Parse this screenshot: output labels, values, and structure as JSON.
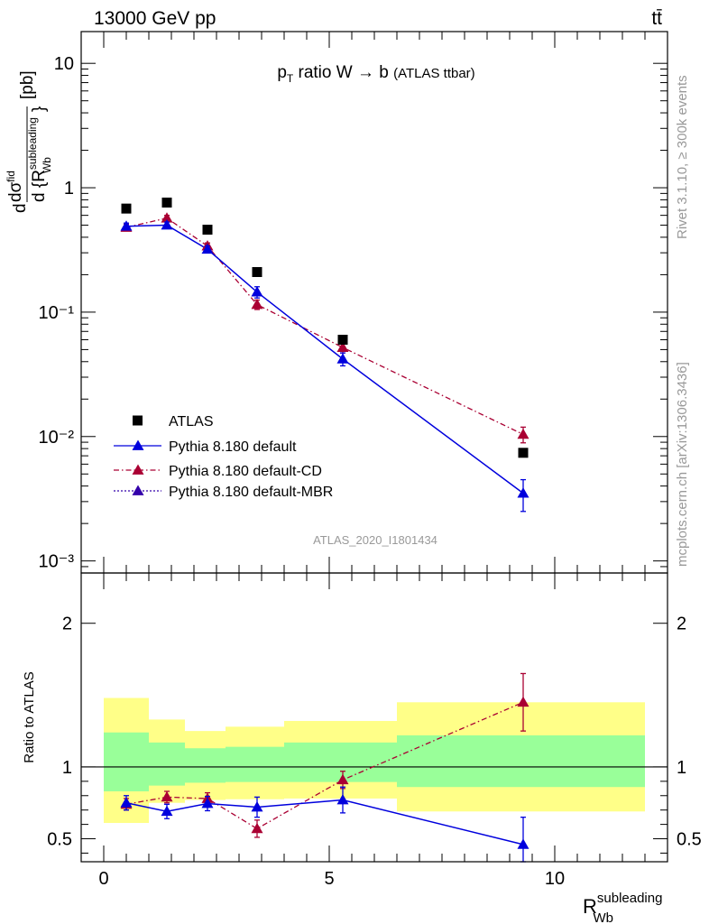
{
  "header": {
    "left": "13000 GeV pp",
    "right": "tt̄"
  },
  "side_labels": {
    "rivet": "Rivet 3.1.10, ≥ 300k events",
    "mcplots": "mcplots.cern.ch [arXiv:1306.3436]"
  },
  "colors": {
    "atlas": "#000000",
    "default": "#0000dd",
    "cd": "#aa0033",
    "mbr": "#3300aa",
    "band_inner": "#99ff99",
    "band_outer": "#ffff88"
  },
  "chart_data": [
    {
      "type": "scatter",
      "panel": "main",
      "title": "p_T ratio W → b (ATLAS ttbar)",
      "ylabel": "dσ^fid / d{R_Wb^subleading} [pb]",
      "analysis_label": "ATLAS_2020_I1801434",
      "yscale": "log",
      "xlim": [
        -0.5,
        12.5
      ],
      "ylim": [
        0.0008,
        18
      ],
      "y_ticks": [
        {
          "value": 0.001,
          "label": "10⁻³"
        },
        {
          "value": 0.01,
          "label": "10⁻²"
        },
        {
          "value": 0.1,
          "label": "10⁻¹"
        },
        {
          "value": 1,
          "label": "1"
        },
        {
          "value": 10,
          "label": "10"
        }
      ],
      "legend_position": "bottom-left",
      "series": [
        {
          "name": "ATLAS",
          "style": "square",
          "x": [
            0.5,
            1.4,
            2.3,
            3.4,
            5.3,
            9.3
          ],
          "y": [
            0.68,
            0.76,
            0.46,
            0.21,
            0.06,
            0.0074
          ]
        },
        {
          "name": "Pythia 8.180 default",
          "style": "solid",
          "x": [
            0.5,
            1.4,
            2.3,
            3.4,
            5.3,
            9.3
          ],
          "y": [
            0.49,
            0.5,
            0.32,
            0.145,
            0.042,
            0.0035
          ],
          "err": [
            0.03,
            0.03,
            0.02,
            0.015,
            0.005,
            0.001
          ]
        },
        {
          "name": "Pythia 8.180 default-CD",
          "style": "dashdot",
          "x": [
            0.5,
            1.4,
            2.3,
            3.4,
            5.3,
            9.3
          ],
          "y": [
            0.48,
            0.57,
            0.34,
            0.115,
            0.052,
            0.0104
          ],
          "err": [
            0.03,
            0.03,
            0.02,
            0.01,
            0.005,
            0.0015
          ]
        },
        {
          "name": "Pythia 8.180 default-MBR",
          "style": "dotted",
          "x": [],
          "y": []
        }
      ]
    },
    {
      "type": "scatter",
      "panel": "ratio",
      "ylabel": "Ratio to ATLAS",
      "xlabel": "R_Wb^subleading",
      "xlim": [
        -0.5,
        12.5
      ],
      "ylim": [
        0.34,
        2.35
      ],
      "x_ticks": [
        0,
        5,
        10
      ],
      "y_ticks": [
        0.5,
        1,
        2
      ],
      "bands": {
        "edges": [
          0,
          1,
          1.8,
          2.7,
          4.0,
          6.5,
          12
        ],
        "inner_lo": [
          0.83,
          0.87,
          0.89,
          0.895,
          0.895,
          0.86
        ],
        "inner_hi": [
          1.24,
          1.17,
          1.13,
          1.14,
          1.17,
          1.22
        ],
        "outer_lo": [
          0.61,
          0.75,
          0.77,
          0.775,
          0.78,
          0.69
        ],
        "outer_hi": [
          1.48,
          1.33,
          1.25,
          1.28,
          1.32,
          1.45
        ]
      },
      "series": [
        {
          "name": "Pythia 8.180 default",
          "x": [
            0.5,
            1.4,
            2.3,
            3.4,
            5.3,
            9.3
          ],
          "y": [
            0.75,
            0.69,
            0.745,
            0.72,
            0.77,
            0.46
          ],
          "err": [
            0.05,
            0.05,
            0.05,
            0.07,
            0.09,
            0.19
          ]
        },
        {
          "name": "Pythia 8.180 default-CD",
          "x": [
            0.5,
            1.4,
            2.3,
            3.4,
            5.3,
            9.3
          ],
          "y": [
            0.74,
            0.79,
            0.78,
            0.57,
            0.91,
            1.45
          ],
          "err": [
            0.04,
            0.04,
            0.04,
            0.06,
            0.06,
            0.2
          ]
        }
      ]
    }
  ]
}
